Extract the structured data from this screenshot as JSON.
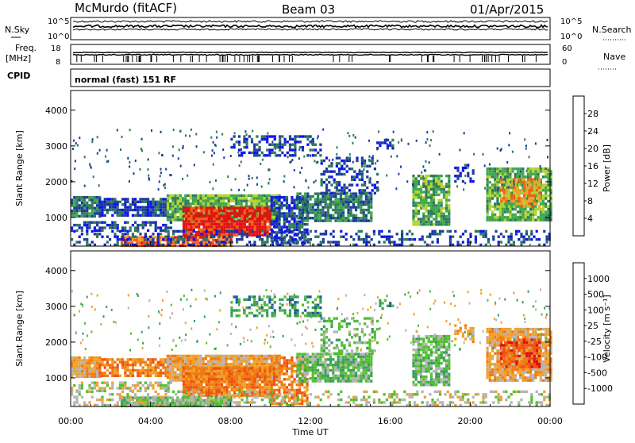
{
  "header": {
    "station": "McMurdo (fitACF)",
    "beam": "Beam 03",
    "date": "01/Apr/2015"
  },
  "side_labels": {
    "nsky": "N.Sky",
    "nsearch": "N.Search",
    "freq_line1": "Freq.",
    "freq_line2": "[MHz]",
    "nave": "Nave",
    "cpid": "CPID",
    "cpid_value": "normal (fast) 151 RF"
  },
  "noise_panel": {
    "left_ticks": [
      "10^5",
      "10^0"
    ],
    "right_ticks": [
      "10^5",
      "10^0"
    ]
  },
  "freq_panel": {
    "left_ticks": [
      "18",
      "8"
    ],
    "right_ticks": [
      "60",
      "0"
    ]
  },
  "colors": {
    "power_scale": [
      "#1010f0",
      "#1c3c9c",
      "#2e7a5a",
      "#3ea84a",
      "#b6d030",
      "#f0a028",
      "#f06018",
      "#e01010"
    ],
    "velocity_scale": [
      "#e01010",
      "#f05010",
      "#f07a10",
      "#f0a028",
      "#b4b4b4",
      "#50c030",
      "#3c9c5c",
      "#1c5c9c",
      "#1414c8"
    ]
  },
  "chart_data": [
    {
      "type": "heatmap",
      "name": "power",
      "ylabel": "Slant Range [km]",
      "yticks": [
        "1000",
        "2000",
        "3000",
        "4000"
      ],
      "ylim": [
        200,
        4550
      ],
      "colorbar_label": "Power [dB]",
      "colorbar_ticks": [
        "4",
        "8",
        "12",
        "16",
        "20",
        "24",
        "28"
      ],
      "colorbar_range": [
        0,
        32
      ]
    },
    {
      "type": "heatmap",
      "name": "velocity",
      "ylabel": "Slant Range [km]",
      "yticks": [
        "1000",
        "2000",
        "3000",
        "4000"
      ],
      "ylim": [
        200,
        4550
      ],
      "colorbar_label": "Velocity [m s⁻¹]",
      "colorbar_ticks": [
        "-1000",
        "-500",
        "-100",
        "-25",
        "25",
        "100",
        "500",
        "1000"
      ]
    }
  ],
  "time_axis": {
    "ticks": [
      "00:00",
      "04:00",
      "08:00",
      "12:00",
      "16:00",
      "20:00",
      "00:00"
    ],
    "xlabel": "Time UT",
    "range_hours": [
      0,
      24
    ]
  }
}
